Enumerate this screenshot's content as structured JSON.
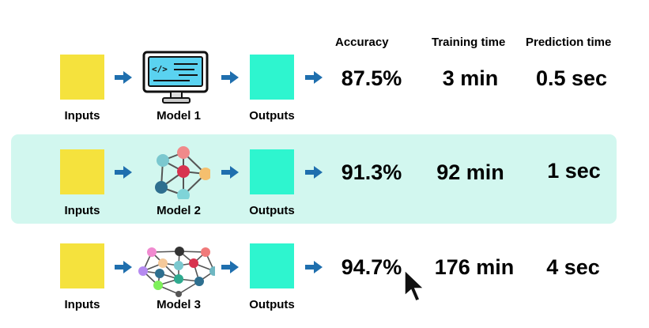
{
  "headers": {
    "accuracy": "Accuracy",
    "training_time": "Training time",
    "prediction_time": "Prediction time"
  },
  "rows": [
    {
      "input_label": "Inputs",
      "model_label": "Model 1",
      "model_icon": "computer-code-icon",
      "output_label": "Outputs",
      "accuracy": "87.5%",
      "training_time": "3 min",
      "prediction_time": "0.5 sec",
      "highlighted": false
    },
    {
      "input_label": "Inputs",
      "model_label": "Model 2",
      "model_icon": "small-network-icon",
      "output_label": "Outputs",
      "accuracy": "91.3%",
      "training_time": "92 min",
      "prediction_time": "1 sec",
      "highlighted": true
    },
    {
      "input_label": "Inputs",
      "model_label": "Model 3",
      "model_icon": "large-network-icon",
      "output_label": "Outputs",
      "accuracy": "94.7%",
      "training_time": "176 min",
      "prediction_time": "4 sec",
      "highlighted": false
    }
  ],
  "colors": {
    "input": "#f5e23d",
    "output": "#2ef5cf",
    "arrow": "#1f6fae",
    "highlight": "#d2f7ef"
  }
}
